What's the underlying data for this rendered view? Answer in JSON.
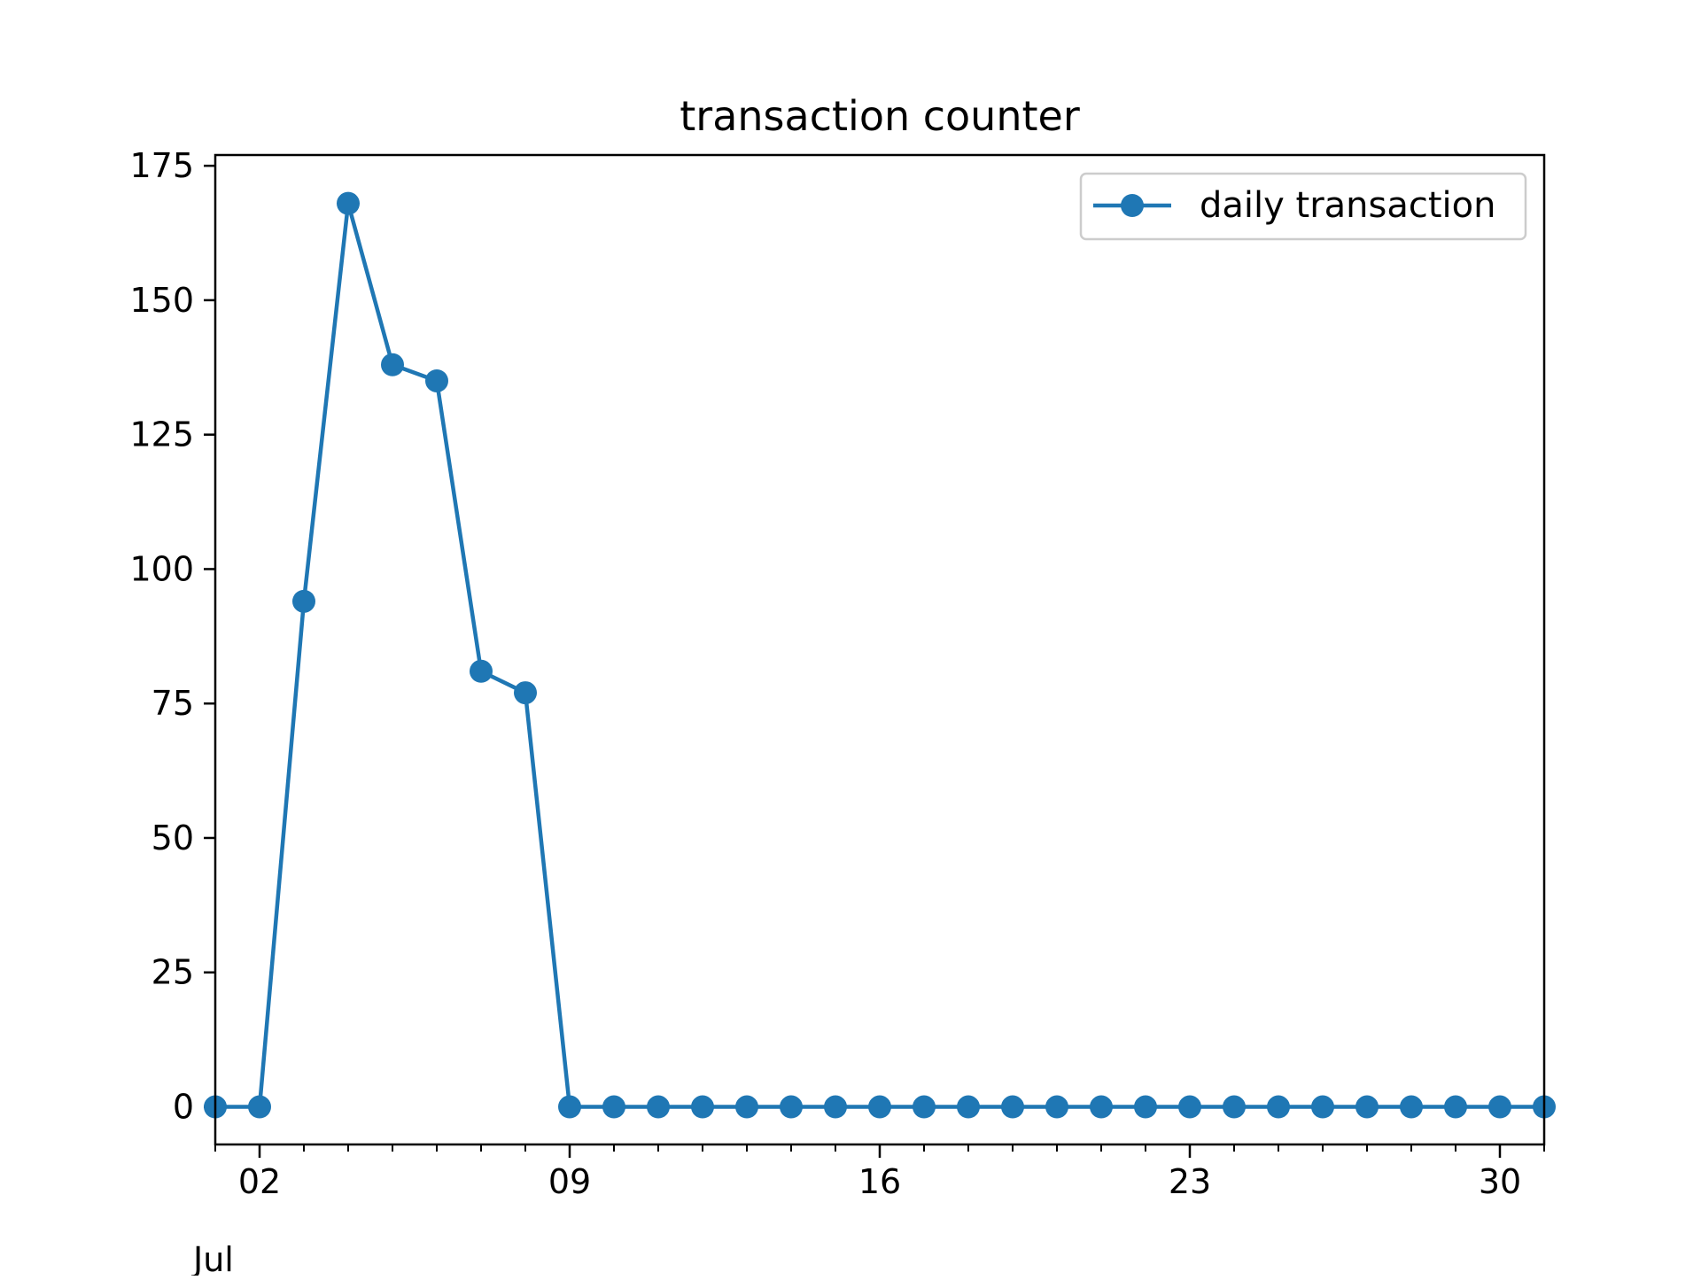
{
  "chart_data": {
    "type": "line",
    "title": "transaction counter",
    "xlabel": "",
    "ylabel": "",
    "x_axis": {
      "type": "date",
      "month_label": "Jul",
      "range": [
        "2018-07-01",
        "2018-07-31"
      ],
      "major_tick_labels": [
        "02",
        "09",
        "16",
        "23",
        "30"
      ],
      "major_ticks": [
        "2018-07-02",
        "2018-07-09",
        "2018-07-16",
        "2018-07-23",
        "2018-07-30"
      ],
      "minor_ticks": "daily"
    },
    "y_axis": {
      "ylim": [
        -7,
        177
      ],
      "ticks": [
        0,
        25,
        50,
        75,
        100,
        125,
        150,
        175
      ],
      "tick_labels": [
        "0",
        "25",
        "50",
        "75",
        "100",
        "125",
        "150",
        "175"
      ]
    },
    "grid": false,
    "legend": {
      "placement": "top-right",
      "entries": [
        "daily transaction"
      ]
    },
    "series": [
      {
        "name": "daily transaction",
        "color": "#1f77b4",
        "marker": "circle",
        "x": [
          "2018-07-01",
          "2018-07-02",
          "2018-07-03",
          "2018-07-04",
          "2018-07-05",
          "2018-07-06",
          "2018-07-07",
          "2018-07-08",
          "2018-07-09",
          "2018-07-10",
          "2018-07-11",
          "2018-07-12",
          "2018-07-13",
          "2018-07-14",
          "2018-07-15",
          "2018-07-16",
          "2018-07-17",
          "2018-07-18",
          "2018-07-19",
          "2018-07-20",
          "2018-07-21",
          "2018-07-22",
          "2018-07-23",
          "2018-07-24",
          "2018-07-25",
          "2018-07-26",
          "2018-07-27",
          "2018-07-28",
          "2018-07-29",
          "2018-07-30",
          "2018-07-31"
        ],
        "values": [
          0,
          0,
          94,
          168,
          138,
          135,
          81,
          77,
          0,
          0,
          0,
          0,
          0,
          0,
          0,
          0,
          0,
          0,
          0,
          0,
          0,
          0,
          0,
          0,
          0,
          0,
          0,
          0,
          0,
          0,
          0
        ]
      }
    ]
  }
}
